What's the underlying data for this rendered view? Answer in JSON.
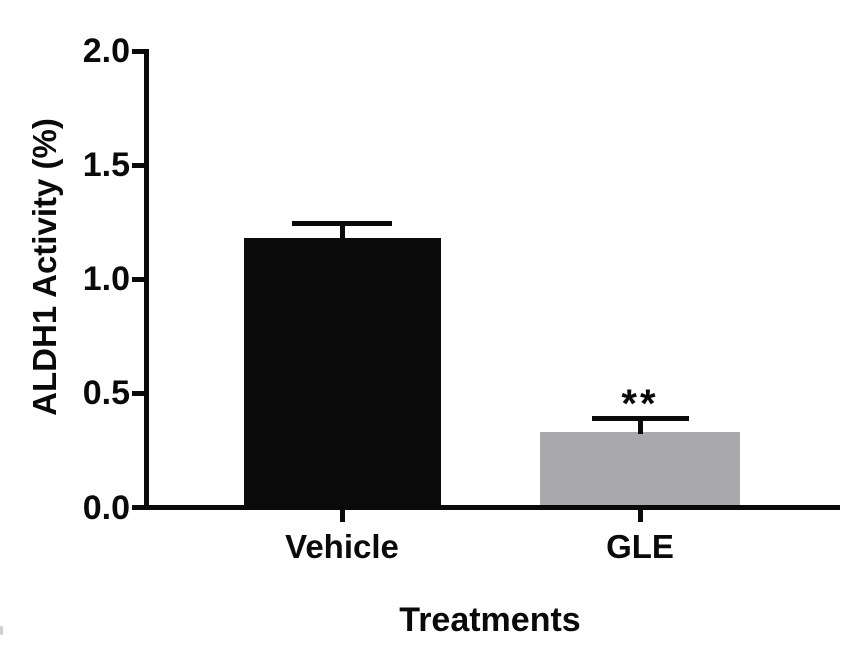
{
  "chart_data": {
    "type": "bar",
    "title": "",
    "xlabel": "Treatments",
    "ylabel": "ALDH1 Activity (%)",
    "categories": [
      "Vehicle",
      "GLE"
    ],
    "values": [
      1.18,
      0.33
    ],
    "errors": [
      0.065,
      0.06
    ],
    "error_direction": "upper-only",
    "bar_colors": [
      "#0b0b0b",
      "#a9a9ab"
    ],
    "axis_color": "#0a0a0a",
    "yticks": [
      0.0,
      0.5,
      1.0,
      1.5,
      2.0
    ],
    "ytick_labels": [
      "0.0",
      "0.5",
      "1.0",
      "1.5",
      "2.0"
    ],
    "ylim": [
      0,
      2.0
    ],
    "grid": false,
    "legend": false,
    "annotations": [
      {
        "category": "GLE",
        "label": "**"
      }
    ]
  }
}
